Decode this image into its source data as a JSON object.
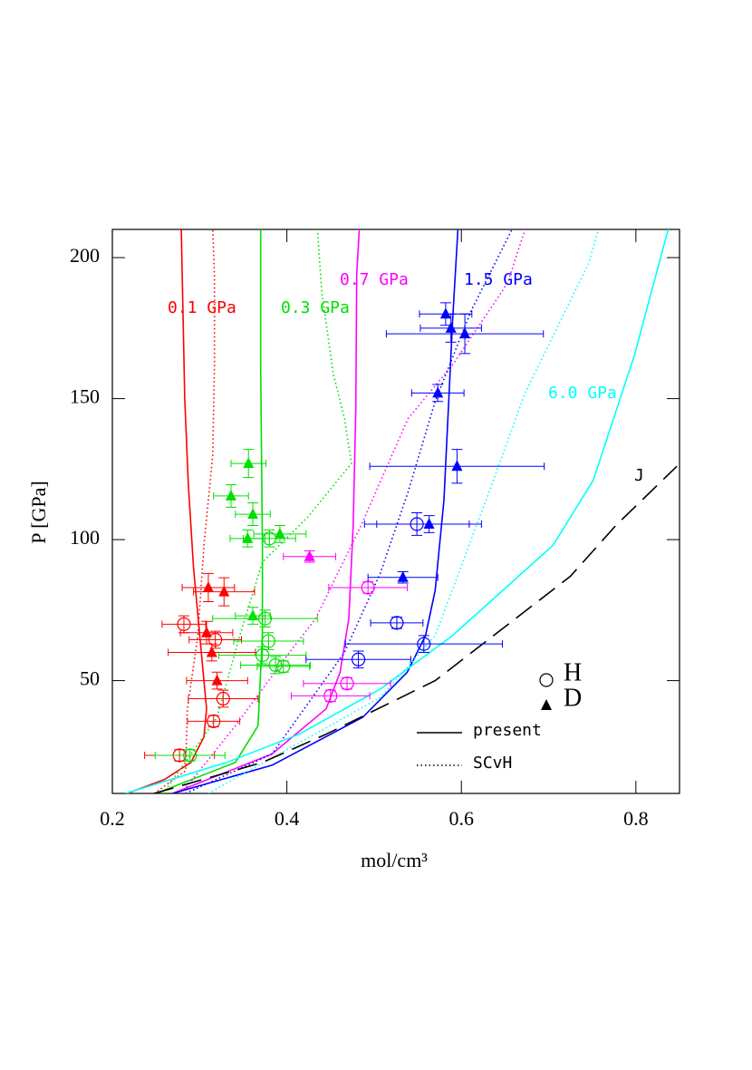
{
  "chart_data": {
    "type": "line",
    "x_label": "mol/cm³",
    "y_label": "P [GPa]",
    "xlim": [
      0.2,
      0.85
    ],
    "ylim": [
      10,
      210
    ],
    "xticks": [
      0.2,
      0.4,
      0.6,
      0.8
    ],
    "yticks": [
      50,
      100,
      150,
      200
    ],
    "curves": [
      {
        "label": "0.1 GPa",
        "color": "#ff0000",
        "present": {
          "x": [
            0.217,
            0.26,
            0.29,
            0.305,
            0.308,
            0.302,
            0.293,
            0.287,
            0.283,
            0.281,
            0.279
          ],
          "values": [
            10,
            15,
            21,
            30,
            40,
            60,
            90,
            120,
            150,
            180,
            210
          ]
        },
        "scvh": {
          "x": [
            0.248,
            0.284,
            0.286,
            0.298,
            0.305,
            0.315,
            0.317,
            0.317,
            0.315
          ],
          "values": [
            10,
            18,
            40,
            66,
            98,
            130,
            162,
            194,
            210
          ]
        }
      },
      {
        "label": "0.3 GPa",
        "color": "#00e000",
        "present": {
          "x": [
            0.25,
            0.341,
            0.367,
            0.372,
            0.372,
            0.37,
            0.37
          ],
          "values": [
            10,
            21,
            34,
            66,
            98,
            162,
            210
          ]
        },
        "scvh": {
          "x": [
            0.258,
            0.32,
            0.346,
            0.372,
            0.424,
            0.474,
            0.466,
            0.453,
            0.44,
            0.435
          ],
          "values": [
            10,
            37,
            66,
            92,
            108,
            127,
            143,
            159,
            188,
            210
          ]
        }
      },
      {
        "label": "0.7 GPa",
        "color": "#ff00ff",
        "present": {
          "x": [
            0.269,
            0.383,
            0.445,
            0.461,
            0.471,
            0.476,
            0.479,
            0.48,
            0.483
          ],
          "values": [
            10,
            24,
            40,
            53,
            72,
            105,
            146,
            194,
            210
          ]
        },
        "scvh": {
          "x": [
            0.279,
            0.341,
            0.403,
            0.433,
            0.485,
            0.539,
            0.59,
            0.653,
            0.673
          ],
          "values": [
            10,
            34,
            60,
            72,
            105,
            143,
            162,
            191,
            210
          ]
        }
      },
      {
        "label": "1.5 GPa",
        "color": "#0000ff",
        "present": {
          "x": [
            0.269,
            0.383,
            0.487,
            0.538,
            0.559,
            0.57,
            0.58,
            0.585,
            0.59,
            0.596
          ],
          "values": [
            10,
            20,
            37,
            53,
            66,
            82,
            114,
            146,
            178,
            210
          ]
        },
        "scvh": {
          "x": [
            0.284,
            0.383,
            0.466,
            0.507,
            0.539,
            0.57,
            0.611,
            0.658
          ],
          "values": [
            10,
            24,
            60,
            88,
            117,
            149,
            181,
            210
          ]
        }
      },
      {
        "label": "6.0 GPa",
        "color": "#00ffff",
        "present": {
          "x": [
            0.215,
            0.331,
            0.414,
            0.507,
            0.59,
            0.705,
            0.751,
            0.798,
            0.837
          ],
          "values": [
            10,
            21,
            31,
            47,
            66,
            98,
            121,
            165,
            210
          ]
        },
        "scvh": {
          "x": [
            0.31,
            0.507,
            0.57,
            0.632,
            0.673,
            0.746,
            0.757
          ],
          "values": [
            10,
            44,
            66,
            117,
            152,
            198,
            210
          ]
        }
      }
    ],
    "reference": {
      "label": "J",
      "color": "#000000",
      "x": [
        0.248,
        0.372,
        0.445,
        0.57,
        0.725,
        0.777,
        0.847
      ],
      "values": [
        10,
        21,
        31,
        50,
        87,
        105,
        126
      ]
    },
    "points": [
      {
        "color": "#ff0000",
        "marker": "circle",
        "x": [
          0.282,
          0.318,
          0.327,
          0.316,
          0.277
        ],
        "values": [
          70,
          64.5,
          43.6,
          35.6,
          23.5
        ],
        "xerr": [
          0.025,
          0.03,
          0.04,
          0.03,
          0.04
        ],
        "yerr": [
          3,
          3,
          3,
          2,
          2
        ]
      },
      {
        "color": "#ff0000",
        "marker": "triangle",
        "x": [
          0.31,
          0.328,
          0.308,
          0.314,
          0.32
        ],
        "values": [
          83,
          81.5,
          67,
          60,
          50
        ],
        "xerr": [
          0.03,
          0.035,
          0.03,
          0.05,
          0.035
        ],
        "yerr": [
          5,
          5,
          4,
          3,
          3
        ]
      },
      {
        "color": "#00e000",
        "marker": "circle",
        "x": [
          0.38,
          0.375,
          0.379,
          0.372,
          0.387,
          0.396,
          0.289
        ],
        "values": [
          100.4,
          72,
          64,
          59,
          55.5,
          55,
          23.5
        ],
        "xerr": [
          0.03,
          0.06,
          0.04,
          0.05,
          0.04,
          0.03,
          0.04
        ],
        "yerr": [
          3,
          3,
          3,
          3,
          3,
          2,
          2
        ]
      },
      {
        "color": "#00e000",
        "marker": "triangle",
        "x": [
          0.356,
          0.336,
          0.361,
          0.392,
          0.355,
          0.361
        ],
        "values": [
          127,
          115.5,
          109,
          102,
          100.4,
          73
        ],
        "xerr": [
          0.02,
          0.02,
          0.02,
          0.03,
          0.02,
          0.02
        ],
        "yerr": [
          5,
          4,
          4,
          3,
          3,
          3
        ]
      },
      {
        "color": "#ff00ff",
        "marker": "triangle",
        "x": [
          0.426
        ],
        "values": [
          94
        ],
        "xerr": [
          0.03
        ],
        "yerr": [
          2
        ]
      },
      {
        "color": "#ff00ff",
        "marker": "circle",
        "x": [
          0.493,
          0.469,
          0.45
        ],
        "values": [
          83,
          49,
          44.6
        ],
        "xerr": [
          0.045,
          0.05,
          0.045
        ],
        "yerr": [
          2,
          2,
          2
        ]
      },
      {
        "color": "#0000ff",
        "marker": "triangle",
        "x": [
          0.582,
          0.588,
          0.604,
          0.573,
          0.595,
          0.563,
          0.533
        ],
        "values": [
          180,
          175,
          173,
          152,
          126,
          105.5,
          86.6
        ],
        "xerr": [
          0.03,
          0.035,
          0.09,
          0.03,
          0.1,
          0.06,
          0.04
        ],
        "yerr": [
          4,
          5,
          7,
          3,
          6,
          3,
          2
        ]
      },
      {
        "color": "#0000ff",
        "marker": "circle",
        "x": [
          0.549,
          0.526,
          0.557,
          0.482
        ],
        "values": [
          105.5,
          70.5,
          63,
          57.5
        ],
        "xerr": [
          0.06,
          0.03,
          0.09,
          0.06
        ],
        "yerr": [
          4,
          2,
          3,
          3
        ]
      }
    ],
    "legend": {
      "markers": [
        {
          "marker": "circle",
          "label": "H"
        },
        {
          "marker": "triangle",
          "label": "D"
        }
      ],
      "lines": [
        {
          "style": "solid",
          "label": "present"
        },
        {
          "style": "dotted",
          "label": "SCvH"
        }
      ]
    }
  }
}
